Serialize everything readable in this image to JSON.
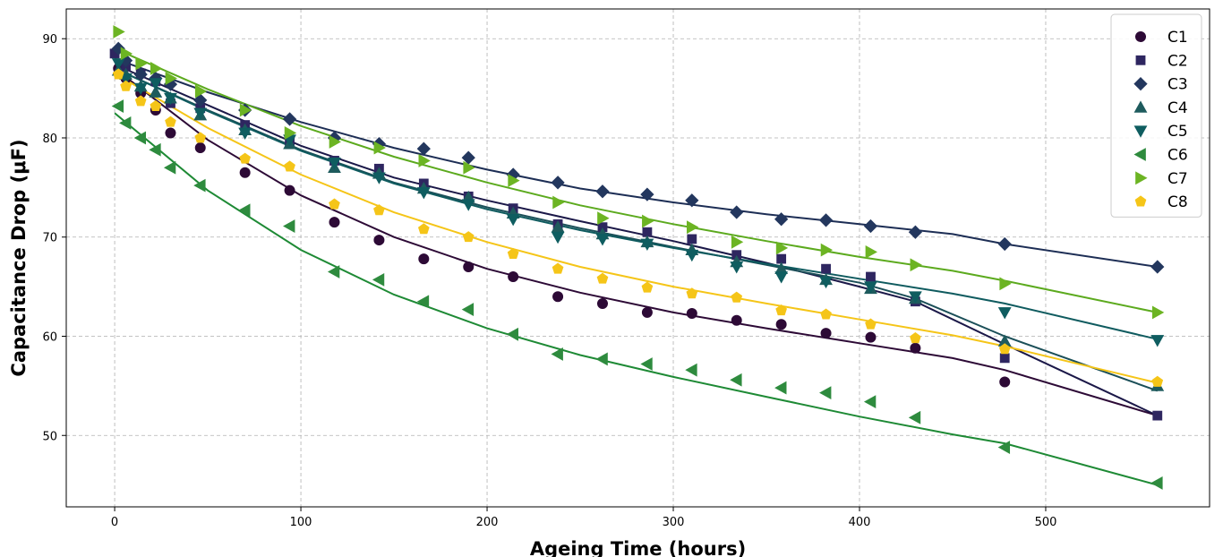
{
  "chart_data": {
    "type": "scatter",
    "title": "",
    "xlabel": "Ageing Time (hours)",
    "ylabel": "Capacitance Drop (μF)",
    "xlim": [
      -26,
      588
    ],
    "ylim": [
      42.8,
      93.0
    ],
    "xticks": [
      0,
      100,
      200,
      300,
      400,
      500
    ],
    "yticks": [
      50,
      60,
      70,
      80,
      90
    ],
    "grid": true,
    "legend_position": "top-right",
    "series": [
      {
        "name": "C1",
        "marker": "circle",
        "color": "#2d0a36",
        "fit_color": "#2d0a36",
        "x": [
          2,
          6,
          14,
          22,
          30,
          46,
          70,
          94,
          118,
          142,
          166,
          190,
          214,
          238,
          262,
          286,
          310,
          334,
          358,
          382,
          406,
          430,
          478
        ],
        "y": [
          87.0,
          86.0,
          84.5,
          82.8,
          80.5,
          79.0,
          76.5,
          74.7,
          71.5,
          69.7,
          67.8,
          67.0,
          66.0,
          64.0,
          63.3,
          62.4,
          62.3,
          61.6,
          61.2,
          60.3,
          59.9,
          58.8,
          55.4
        ],
        "fit_x": [
          0,
          50,
          100,
          150,
          200,
          250,
          300,
          350,
          400,
          450,
          478,
          560
        ],
        "fit_y": [
          87.0,
          79.8,
          74.2,
          70.0,
          66.8,
          64.4,
          62.4,
          60.8,
          59.3,
          57.8,
          56.6,
          52.0
        ]
      },
      {
        "name": "C2",
        "marker": "square",
        "color": "#2e2660",
        "fit_color": "#1b1848",
        "x": [
          0,
          6,
          14,
          22,
          30,
          46,
          70,
          94,
          118,
          142,
          166,
          190,
          214,
          238,
          262,
          286,
          310,
          334,
          358,
          382,
          406,
          430,
          478,
          560
        ],
        "y": [
          88.5,
          87.2,
          86.5,
          85.7,
          83.5,
          83.0,
          81.3,
          79.6,
          77.7,
          76.9,
          75.4,
          74.1,
          72.9,
          71.3,
          71.0,
          70.5,
          69.8,
          68.2,
          67.8,
          66.8,
          66.0,
          63.5,
          57.8,
          52.0
        ],
        "fit_x": [
          0,
          50,
          100,
          150,
          200,
          250,
          300,
          350,
          400,
          430,
          478,
          560
        ],
        "fit_y": [
          87.4,
          83.3,
          79.2,
          76.0,
          73.7,
          71.6,
          69.6,
          67.4,
          65.0,
          63.5,
          59.2,
          52.0
        ]
      },
      {
        "name": "C3",
        "marker": "diamond",
        "color": "#23375e",
        "fit_color": "#1d2e55",
        "x": [
          2,
          6,
          14,
          22,
          30,
          46,
          70,
          94,
          118,
          142,
          166,
          190,
          214,
          238,
          262,
          286,
          310,
          334,
          358,
          382,
          406,
          430,
          478,
          560
        ],
        "y": [
          89.0,
          87.8,
          86.4,
          86.0,
          85.4,
          83.8,
          82.8,
          81.9,
          80.0,
          79.4,
          78.9,
          78.0,
          76.3,
          75.5,
          74.6,
          74.3,
          73.7,
          72.5,
          71.8,
          71.7,
          71.1,
          70.5,
          69.3,
          67.0
        ],
        "fit_x": [
          0,
          50,
          100,
          150,
          200,
          250,
          300,
          350,
          400,
          450,
          478,
          560
        ],
        "fit_y": [
          88.0,
          84.6,
          81.6,
          79.0,
          76.8,
          74.9,
          73.5,
          72.3,
          71.3,
          70.3,
          69.3,
          67.0
        ]
      },
      {
        "name": "C4",
        "marker": "triangle-up",
        "color": "#1e5b5d",
        "fit_color": "#1b4f58",
        "x": [
          2,
          6,
          14,
          22,
          30,
          46,
          70,
          94,
          118,
          142,
          166,
          190,
          214,
          238,
          262,
          286,
          310,
          334,
          358,
          382,
          406,
          430,
          478,
          560
        ],
        "y": [
          86.8,
          86.4,
          85.2,
          84.6,
          84.0,
          82.3,
          80.8,
          79.4,
          77.0,
          76.4,
          74.9,
          74.0,
          72.4,
          71.0,
          70.3,
          69.5,
          68.7,
          67.5,
          66.8,
          65.7,
          64.8,
          63.8,
          59.5,
          55.0
        ],
        "fit_x": [
          0,
          50,
          100,
          150,
          200,
          250,
          300,
          350,
          400,
          430,
          478,
          560
        ],
        "fit_y": [
          87.0,
          82.8,
          78.8,
          75.5,
          73.0,
          70.9,
          69.0,
          67.2,
          65.4,
          63.8,
          60.0,
          54.5
        ]
      },
      {
        "name": "C5",
        "marker": "triangle-down",
        "color": "#0f5d60",
        "fit_color": "#0f5b5f",
        "x": [
          2,
          6,
          14,
          22,
          30,
          46,
          70,
          94,
          118,
          142,
          166,
          190,
          214,
          238,
          262,
          286,
          310,
          334,
          358,
          382,
          406,
          430,
          478,
          560
        ],
        "y": [
          87.5,
          86.0,
          85.0,
          85.5,
          84.0,
          82.5,
          80.5,
          79.8,
          77.5,
          76.0,
          74.5,
          73.3,
          71.8,
          70.0,
          69.8,
          69.3,
          68.2,
          67.0,
          66.0,
          65.5,
          65.0,
          64.0,
          62.4,
          59.6
        ],
        "fit_x": [
          0,
          50,
          100,
          150,
          200,
          250,
          300,
          350,
          400,
          450,
          478,
          560
        ],
        "fit_y": [
          87.0,
          82.7,
          78.7,
          75.4,
          72.8,
          70.7,
          68.9,
          67.3,
          65.8,
          64.3,
          63.3,
          59.7
        ]
      },
      {
        "name": "C6",
        "marker": "triangle-left",
        "color": "#2e8b3e",
        "fit_color": "#1e8a35",
        "x": [
          2,
          6,
          14,
          22,
          30,
          46,
          70,
          94,
          118,
          142,
          166,
          190,
          214,
          238,
          262,
          286,
          310,
          334,
          358,
          382,
          406,
          430,
          478,
          560
        ],
        "y": [
          83.2,
          81.5,
          80.0,
          78.8,
          77.0,
          75.2,
          72.7,
          71.1,
          66.5,
          65.7,
          63.5,
          62.7,
          60.2,
          58.2,
          57.7,
          57.2,
          56.6,
          55.6,
          54.8,
          54.3,
          53.4,
          51.8,
          48.8,
          45.2
        ],
        "fit_x": [
          0,
          50,
          100,
          150,
          200,
          250,
          300,
          350,
          400,
          450,
          478,
          560
        ],
        "fit_y": [
          82.5,
          74.7,
          68.7,
          64.2,
          60.8,
          58.1,
          55.9,
          53.9,
          51.9,
          50.1,
          49.2,
          45.0
        ]
      },
      {
        "name": "C7",
        "marker": "triangle-right",
        "color": "#6cb423",
        "fit_color": "#5caa1e",
        "x": [
          2,
          6,
          14,
          22,
          30,
          46,
          70,
          94,
          118,
          142,
          166,
          190,
          214,
          238,
          262,
          286,
          310,
          334,
          358,
          382,
          406,
          430,
          478,
          560
        ],
        "y": [
          90.7,
          88.5,
          87.5,
          87.0,
          86.0,
          84.7,
          82.8,
          80.5,
          79.6,
          79.0,
          77.7,
          77.0,
          75.7,
          73.5,
          71.9,
          71.6,
          71.0,
          69.5,
          68.9,
          68.7,
          68.5,
          67.2,
          65.3,
          62.4
        ],
        "fit_x": [
          0,
          50,
          100,
          150,
          200,
          250,
          300,
          350,
          400,
          450,
          478,
          560
        ],
        "fit_y": [
          89.0,
          84.9,
          81.2,
          78.1,
          75.5,
          73.2,
          71.3,
          69.6,
          68.0,
          66.6,
          65.6,
          62.4
        ]
      },
      {
        "name": "C8",
        "marker": "pentagon",
        "color": "#f5c518",
        "fit_color": "#f5c518",
        "x": [
          2,
          6,
          14,
          22,
          30,
          46,
          70,
          94,
          118,
          142,
          166,
          190,
          214,
          238,
          262,
          286,
          310,
          334,
          358,
          382,
          406,
          430,
          478,
          560
        ],
        "y": [
          86.4,
          85.2,
          83.7,
          83.2,
          81.6,
          80.0,
          77.9,
          77.1,
          73.3,
          72.7,
          70.8,
          70.0,
          68.3,
          66.8,
          65.8,
          64.9,
          64.3,
          63.9,
          62.6,
          62.2,
          61.2,
          59.8,
          58.7,
          55.4
        ],
        "fit_x": [
          0,
          50,
          100,
          150,
          200,
          250,
          300,
          350,
          400,
          450,
          478,
          560
        ],
        "fit_y": [
          86.5,
          81.0,
          76.3,
          72.5,
          69.5,
          67.0,
          65.0,
          63.3,
          61.7,
          60.1,
          59.0,
          55.3
        ]
      }
    ]
  }
}
